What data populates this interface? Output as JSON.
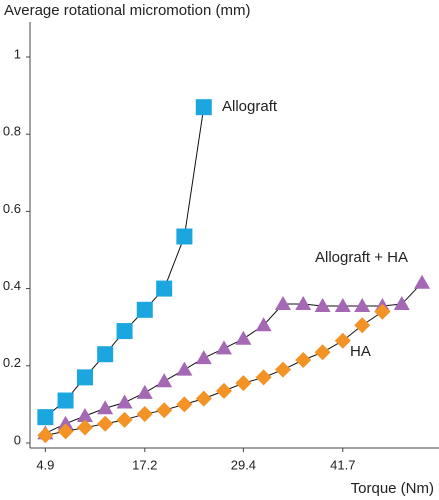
{
  "chart_data": {
    "type": "line",
    "y_label": "Average rotational micromotion (mm)",
    "x_label": "Torque (Nm)",
    "x": [
      4.9,
      7.4,
      9.8,
      12.3,
      14.7,
      17.2,
      19.6,
      22.1,
      24.5,
      27.0,
      29.4,
      31.9,
      34.3,
      36.8,
      39.2,
      41.7,
      44.1,
      46.6,
      49.0,
      51.5
    ],
    "series": [
      {
        "name": "Allograft",
        "color": "#1ba6e0",
        "marker": "square",
        "values": [
          0.067,
          0.11,
          0.17,
          0.23,
          0.29,
          0.345,
          0.4,
          0.535,
          0.87,
          null,
          null,
          null,
          null,
          null,
          null,
          null,
          null,
          null,
          null,
          null
        ]
      },
      {
        "name": "Allograft + HA",
        "color": "#a468b4",
        "marker": "triangle",
        "values": [
          0.025,
          0.05,
          0.07,
          0.09,
          0.105,
          0.13,
          0.16,
          0.19,
          0.22,
          0.245,
          0.27,
          0.305,
          0.36,
          0.36,
          0.355,
          0.355,
          0.355,
          0.355,
          0.36,
          0.415
        ]
      },
      {
        "name": "HA",
        "color": "#f39325",
        "marker": "diamond",
        "values": [
          0.02,
          0.03,
          0.04,
          0.05,
          0.06,
          0.075,
          0.085,
          0.1,
          0.115,
          0.135,
          0.155,
          0.17,
          0.19,
          0.215,
          0.235,
          0.265,
          0.305,
          0.34,
          null,
          null
        ]
      }
    ],
    "xlim": [
      3,
      53.6
    ],
    "xticks": [
      4.9,
      17.2,
      29.4,
      41.7
    ],
    "ylim": [
      0,
      1
    ],
    "yticks": [
      0,
      0.2,
      0.4,
      0.6,
      0.8,
      1
    ]
  }
}
